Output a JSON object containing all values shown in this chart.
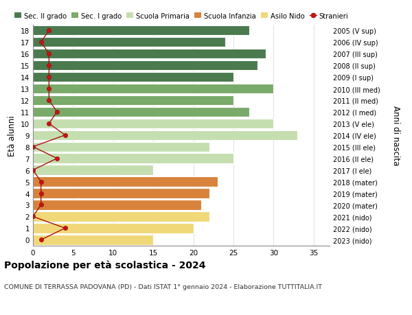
{
  "ages": [
    18,
    17,
    16,
    15,
    14,
    13,
    12,
    11,
    10,
    9,
    8,
    7,
    6,
    5,
    4,
    3,
    2,
    1,
    0
  ],
  "right_labels": [
    "2005 (V sup)",
    "2006 (IV sup)",
    "2007 (III sup)",
    "2008 (II sup)",
    "2009 (I sup)",
    "2010 (III med)",
    "2011 (II med)",
    "2012 (I med)",
    "2013 (V ele)",
    "2014 (IV ele)",
    "2015 (III ele)",
    "2016 (II ele)",
    "2017 (I ele)",
    "2018 (mater)",
    "2019 (mater)",
    "2020 (mater)",
    "2021 (nido)",
    "2022 (nido)",
    "2023 (nido)"
  ],
  "bar_values": [
    27,
    24,
    29,
    28,
    25,
    30,
    25,
    27,
    30,
    33,
    22,
    25,
    15,
    23,
    22,
    21,
    22,
    20,
    15
  ],
  "bar_colors": [
    "#4a7a4e",
    "#4a7a4e",
    "#4a7a4e",
    "#4a7a4e",
    "#4a7a4e",
    "#7aaa6a",
    "#7aaa6a",
    "#7aaa6a",
    "#c5deb0",
    "#c5deb0",
    "#c5deb0",
    "#c5deb0",
    "#c5deb0",
    "#d8833b",
    "#d8833b",
    "#d8833b",
    "#f0d878",
    "#f0d878",
    "#f0d878"
  ],
  "stranieri_values": [
    2,
    1,
    2,
    2,
    2,
    2,
    2,
    3,
    2,
    4,
    0,
    3,
    0,
    1,
    1,
    1,
    0,
    4,
    1
  ],
  "legend_labels": [
    "Sec. II grado",
    "Sec. I grado",
    "Scuola Primaria",
    "Scuola Infanzia",
    "Asilo Nido",
    "Stranieri"
  ],
  "legend_colors": [
    "#4a7a4e",
    "#7aaa6a",
    "#c5deb0",
    "#d8833b",
    "#f0d878",
    "#cc1111"
  ],
  "ylabel_left": "Età alunni",
  "ylabel_right": "Anni di nascita",
  "title": "Popolazione per età scolastica - 2024",
  "subtitle": "COMUNE DI TERRASSA PADOVANA (PD) - Dati ISTAT 1° gennaio 2024 - Elaborazione TUTTITALIA.IT",
  "xlim": [
    0,
    37
  ],
  "xticks": [
    0,
    5,
    10,
    15,
    20,
    25,
    30,
    35
  ],
  "bg_color": "#ffffff",
  "grid_color": "#bbbbbb"
}
